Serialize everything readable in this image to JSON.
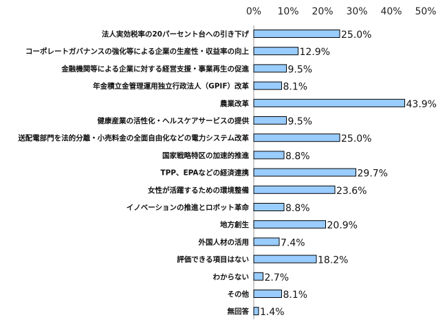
{
  "chart_data": {
    "type": "bar",
    "orientation": "horizontal",
    "xlim": [
      0,
      50
    ],
    "ticks": [
      "0%",
      "10%",
      "20%",
      "30%",
      "40%",
      "50%"
    ],
    "tick_values": [
      0,
      10,
      20,
      30,
      40,
      50
    ],
    "value_suffix": "%",
    "bar_color": "#99ccff",
    "bar_stroke": "#000000",
    "categories": [
      "法人実効税率の20パーセント台への引き下げ",
      "コーポレートガバナンスの強化等による企業の生産性・収益率の向上",
      "金融機関等による企業に対する経営支援・事業再生の促進",
      "年金積立金管理運用独立行政法人（GPIF）改革",
      "農業改革",
      "健康産業の活性化・ヘルスケアサービスの提供",
      "送配電部門を法的分離・小売料金の全面自由化などの電力システム改革",
      "国家戦略特区の加速的推進",
      "TPP、EPAなどの経済連携",
      "女性が活躍するための環境整備",
      "イノベーションの推進とロボット革命",
      "地方創生",
      "外国人材の活用",
      "評価できる項目はない",
      "わからない",
      "その他",
      "無回答"
    ],
    "values": [
      25.0,
      12.9,
      9.5,
      8.1,
      43.9,
      9.5,
      25.0,
      8.8,
      29.7,
      23.6,
      8.8,
      20.9,
      7.4,
      18.2,
      2.7,
      8.1,
      1.4
    ],
    "value_labels": [
      "25.0%",
      "12.9%",
      "9.5%",
      "8.1%",
      "43.9%",
      "9.5%",
      "25.0%",
      "8.8%",
      "29.7%",
      "23.6%",
      "8.8%",
      "20.9%",
      "7.4%",
      "18.2%",
      "2.7%",
      "8.1%",
      "1.4%"
    ]
  }
}
